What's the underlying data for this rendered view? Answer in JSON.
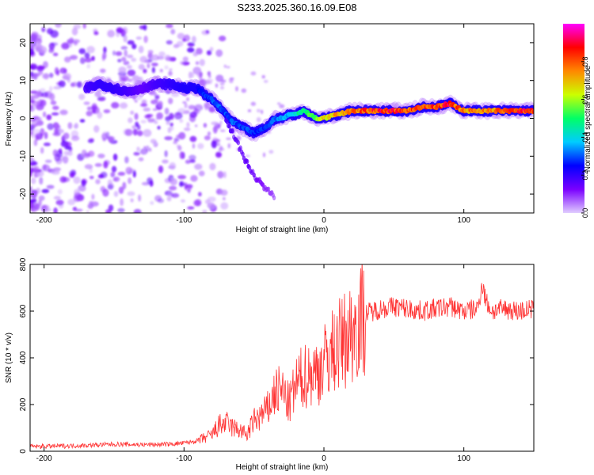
{
  "title": "S233.2025.360.16.09.E08",
  "chart_data": [
    {
      "type": "heatmap",
      "title": "S233.2025.360.16.09.E08",
      "xlabel": "Height of straight line (km)",
      "ylabel": "Frequency (Hz)",
      "xlim": [
        -210,
        150
      ],
      "ylim": [
        -25,
        25
      ],
      "xticks": [
        -200,
        -100,
        0,
        100
      ],
      "xtick_labels": [
        "-200",
        "-100",
        "0",
        "100"
      ],
      "yticks": [
        -20,
        -10,
        0,
        10,
        20
      ],
      "ytick_labels": [
        "-20",
        "-10",
        "0",
        "10",
        "20"
      ],
      "colorbar": {
        "label": "Normalized spectral amplitude",
        "range": [
          0,
          1
        ],
        "ticks": [
          0.0,
          0.2,
          0.4,
          0.6,
          0.8
        ],
        "tick_labels": [
          "0.0",
          "0.2",
          "0.4",
          "0.6",
          "0.8"
        ],
        "colormap": [
          "#e0ccff",
          "#7a00ff",
          "#0000ff",
          "#00ccff",
          "#00ff66",
          "#ccff00",
          "#ff8800",
          "#ff0000",
          "#ff00ff"
        ]
      },
      "ridge": {
        "x": [
          -170,
          -160,
          -150,
          -140,
          -130,
          -120,
          -110,
          -100,
          -90,
          -85,
          -80,
          -75,
          -70,
          -65,
          -60,
          -55,
          -50,
          -45,
          -40,
          -35,
          -30,
          -25,
          -20,
          -15,
          -10,
          -5,
          0,
          10,
          20,
          30,
          40,
          50,
          60,
          70,
          80,
          90,
          100,
          110,
          120,
          130,
          140,
          150
        ],
        "y": [
          8,
          9,
          8,
          7,
          8,
          9,
          9,
          8,
          8,
          6,
          5,
          3,
          1,
          -1,
          -2,
          -3,
          -4,
          -3,
          -2,
          0,
          0,
          1,
          1,
          2,
          1,
          0,
          0,
          1,
          2,
          2,
          2,
          2,
          2,
          3,
          3,
          4,
          2,
          2,
          2,
          2,
          2,
          2
        ],
        "amplitude": [
          0.18,
          0.2,
          0.2,
          0.18,
          0.15,
          0.18,
          0.2,
          0.22,
          0.25,
          0.28,
          0.3,
          0.32,
          0.3,
          0.32,
          0.3,
          0.3,
          0.28,
          0.3,
          0.3,
          0.32,
          0.35,
          0.4,
          0.45,
          0.5,
          0.55,
          0.6,
          0.7,
          0.75,
          0.8,
          0.85,
          0.9,
          0.88,
          0.85,
          0.85,
          0.85,
          0.9,
          0.8,
          0.78,
          0.8,
          0.85,
          0.9,
          0.88
        ]
      },
      "branch": {
        "x": [
          -70,
          -65,
          -60,
          -55,
          -50,
          -45,
          -40,
          -35
        ],
        "y": [
          0,
          -4,
          -8,
          -12,
          -15,
          -17,
          -19,
          -21
        ],
        "amplitude": [
          0.18,
          0.16,
          0.15,
          0.15,
          0.14,
          0.12,
          0.1,
          0.08
        ]
      }
    },
    {
      "type": "line",
      "xlabel": "Height of straight line (km)",
      "ylabel": "SNR (10 * v/v)",
      "xlim": [
        -210,
        150
      ],
      "ylim": [
        0,
        800
      ],
      "xticks": [
        -200,
        -100,
        0,
        100
      ],
      "xtick_labels": [
        "-200",
        "-100",
        "0",
        "100"
      ],
      "yticks": [
        0,
        200,
        400,
        600,
        800
      ],
      "ytick_labels": [
        "0",
        "200",
        "400",
        "600",
        "800"
      ],
      "color": "#ff3333",
      "series": [
        {
          "name": "SNR",
          "x": [
            -210,
            -190,
            -170,
            -150,
            -130,
            -110,
            -100,
            -90,
            -80,
            -75,
            -70,
            -65,
            -60,
            -55,
            -50,
            -45,
            -40,
            -35,
            -30,
            -25,
            -20,
            -15,
            -10,
            -5,
            0,
            5,
            10,
            15,
            20,
            25,
            30,
            40,
            50,
            60,
            70,
            80,
            90,
            100,
            110,
            113,
            116,
            120,
            130,
            140,
            150
          ],
          "y": [
            20,
            22,
            25,
            30,
            28,
            30,
            35,
            45,
            70,
            110,
            120,
            100,
            90,
            70,
            130,
            150,
            180,
            250,
            260,
            200,
            280,
            320,
            330,
            340,
            380,
            420,
            450,
            480,
            510,
            560,
            590,
            610,
            620,
            610,
            600,
            610,
            620,
            600,
            610,
            720,
            640,
            600,
            610,
            600,
            610
          ]
        }
      ]
    }
  ]
}
